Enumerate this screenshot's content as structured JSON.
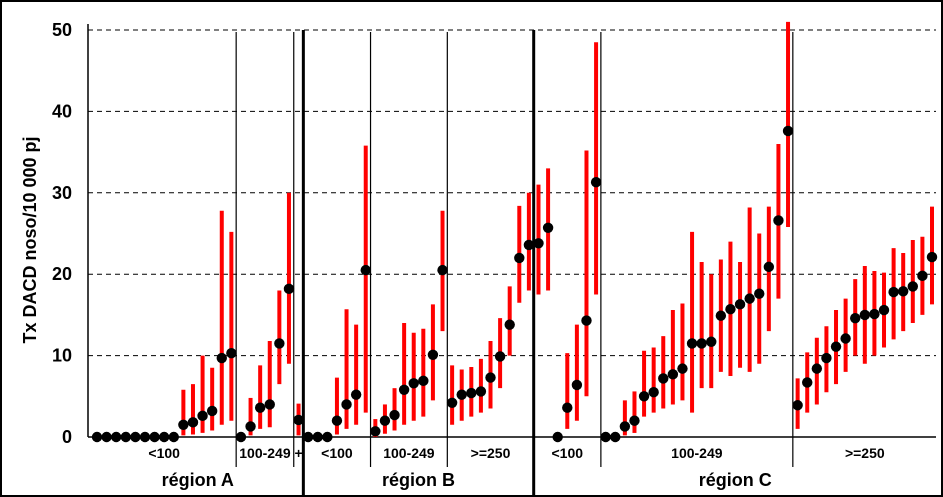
{
  "chart_data": {
    "type": "scatter",
    "title": "",
    "ylabel": "Tx DACD noso/10 000 pj",
    "ylim": [
      0,
      50
    ],
    "yticks": [
      "0",
      "10",
      "20",
      "30",
      "40",
      "50"
    ],
    "grid": "horizontal dashed",
    "colors": {
      "point": "#000000",
      "interval": "#ff0000"
    },
    "regions": [
      {
        "name": "région A",
        "groups": [
          {
            "label": "<100",
            "points": [
              {
                "v": 0,
                "lo": 0,
                "hi": 0
              },
              {
                "v": 0,
                "lo": 0,
                "hi": 0
              },
              {
                "v": 0,
                "lo": 0,
                "hi": 0
              },
              {
                "v": 0,
                "lo": 0,
                "hi": 0
              },
              {
                "v": 0,
                "lo": 0,
                "hi": 0
              },
              {
                "v": 0,
                "lo": 0,
                "hi": 0
              },
              {
                "v": 0,
                "lo": 0,
                "hi": 0
              },
              {
                "v": 0,
                "lo": 0,
                "hi": 0
              },
              {
                "v": 0,
                "lo": 0,
                "hi": 0
              },
              {
                "v": 1.5,
                "lo": 0.2,
                "hi": 5.8
              },
              {
                "v": 1.8,
                "lo": 0.3,
                "hi": 6.5
              },
              {
                "v": 2.6,
                "lo": 0.5,
                "hi": 10
              },
              {
                "v": 3.2,
                "lo": 0.8,
                "hi": 8.5
              },
              {
                "v": 9.7,
                "lo": 1.5,
                "hi": 27.8
              },
              {
                "v": 10.3,
                "lo": 2,
                "hi": 25.2
              }
            ]
          },
          {
            "label": "100-249",
            "points": [
              {
                "v": 0,
                "lo": 0,
                "hi": 0
              },
              {
                "v": 1.3,
                "lo": 0.2,
                "hi": 4.8
              },
              {
                "v": 3.6,
                "lo": 1,
                "hi": 8.8
              },
              {
                "v": 4,
                "lo": 1.2,
                "hi": 11.8
              },
              {
                "v": 11.5,
                "lo": 6.5,
                "hi": 18
              },
              {
                "v": 18.2,
                "lo": 9,
                "hi": 30
              }
            ]
          },
          {
            "label": "+",
            "points": [
              {
                "v": 2.1,
                "lo": 0.2,
                "hi": 4.1
              }
            ]
          }
        ]
      },
      {
        "name": "région B",
        "groups": [
          {
            "label": "<100",
            "points": [
              {
                "v": 0,
                "lo": 0,
                "hi": 0
              },
              {
                "v": 0,
                "lo": 0,
                "hi": 0
              },
              {
                "v": 0,
                "lo": 0,
                "hi": 0
              },
              {
                "v": 2,
                "lo": 0.3,
                "hi": 7.3
              },
              {
                "v": 4,
                "lo": 1,
                "hi": 15.7
              },
              {
                "v": 5.2,
                "lo": 1.5,
                "hi": 13.8
              },
              {
                "v": 20.5,
                "lo": 3,
                "hi": 35.8
              }
            ]
          },
          {
            "label": "100-249",
            "points": [
              {
                "v": 0.7,
                "lo": 0,
                "hi": 2.2
              },
              {
                "v": 2,
                "lo": 0.4,
                "hi": 4
              },
              {
                "v": 2.7,
                "lo": 0.8,
                "hi": 6
              },
              {
                "v": 5.8,
                "lo": 1.5,
                "hi": 14
              },
              {
                "v": 6.6,
                "lo": 2,
                "hi": 12.8
              },
              {
                "v": 6.9,
                "lo": 2.5,
                "hi": 13.3
              },
              {
                "v": 10.1,
                "lo": 4.5,
                "hi": 16.3
              },
              {
                "v": 20.5,
                "lo": 13,
                "hi": 27.8
              }
            ]
          },
          {
            "label": ">=250",
            "points": [
              {
                "v": 4.2,
                "lo": 1.5,
                "hi": 8.8
              },
              {
                "v": 5.2,
                "lo": 2,
                "hi": 8.3
              },
              {
                "v": 5.4,
                "lo": 2.5,
                "hi": 8.6
              },
              {
                "v": 5.6,
                "lo": 3,
                "hi": 9.6
              },
              {
                "v": 7.3,
                "lo": 3.5,
                "hi": 11.8
              },
              {
                "v": 9.9,
                "lo": 6,
                "hi": 14.6
              },
              {
                "v": 13.8,
                "lo": 10,
                "hi": 18.5
              },
              {
                "v": 22,
                "lo": 16.5,
                "hi": 28.4
              },
              {
                "v": 23.6,
                "lo": 18,
                "hi": 30
              }
            ]
          }
        ]
      },
      {
        "name": "région C",
        "groups": [
          {
            "label": "<100",
            "points": [
              {
                "v": 23.8,
                "lo": 17.5,
                "hi": 31
              },
              {
                "v": 25.7,
                "lo": 18,
                "hi": 33
              },
              {
                "v": 0,
                "lo": 0,
                "hi": 0
              },
              {
                "v": 3.6,
                "lo": 1,
                "hi": 10.3
              },
              {
                "v": 6.4,
                "lo": 2,
                "hi": 13.8
              },
              {
                "v": 14.3,
                "lo": 5,
                "hi": 35.2
              },
              {
                "v": 31.3,
                "lo": 17.5,
                "hi": 48.5
              }
            ]
          },
          {
            "label": "100-249",
            "points": [
              {
                "v": 0,
                "lo": 0,
                "hi": 0
              },
              {
                "v": 0,
                "lo": 0,
                "hi": 0
              },
              {
                "v": 1.3,
                "lo": 0.2,
                "hi": 4.5
              },
              {
                "v": 2,
                "lo": 0.5,
                "hi": 5.6
              },
              {
                "v": 5,
                "lo": 2.5,
                "hi": 10.6
              },
              {
                "v": 5.5,
                "lo": 3,
                "hi": 11
              },
              {
                "v": 7.2,
                "lo": 3.5,
                "hi": 12.4
              },
              {
                "v": 7.7,
                "lo": 4,
                "hi": 15.6
              },
              {
                "v": 8.4,
                "lo": 4.5,
                "hi": 16.4
              },
              {
                "v": 11.5,
                "lo": 3,
                "hi": 25.2
              },
              {
                "v": 11.5,
                "lo": 6,
                "hi": 21.5
              },
              {
                "v": 11.7,
                "lo": 6,
                "hi": 20
              },
              {
                "v": 14.9,
                "lo": 8,
                "hi": 21.8
              },
              {
                "v": 15.7,
                "lo": 7.5,
                "hi": 24
              },
              {
                "v": 16.3,
                "lo": 8.5,
                "hi": 21.5
              },
              {
                "v": 17,
                "lo": 8,
                "hi": 28.2
              },
              {
                "v": 17.6,
                "lo": 9,
                "hi": 25
              },
              {
                "v": 20.9,
                "lo": 13,
                "hi": 28.3
              },
              {
                "v": 26.6,
                "lo": 17,
                "hi": 36
              },
              {
                "v": 37.6,
                "lo": 25.8,
                "hi": 51
              }
            ]
          },
          {
            "label": ">=250",
            "points": [
              {
                "v": 3.9,
                "lo": 1,
                "hi": 7.2
              },
              {
                "v": 6.7,
                "lo": 3,
                "hi": 10.4
              },
              {
                "v": 8.4,
                "lo": 4,
                "hi": 12.2
              },
              {
                "v": 9.7,
                "lo": 5.5,
                "hi": 13.6
              },
              {
                "v": 11.1,
                "lo": 6.5,
                "hi": 15.6
              },
              {
                "v": 12.1,
                "lo": 8,
                "hi": 17
              },
              {
                "v": 14.6,
                "lo": 10,
                "hi": 19.4
              },
              {
                "v": 15,
                "lo": 9,
                "hi": 21
              },
              {
                "v": 15.1,
                "lo": 10,
                "hi": 20.4
              },
              {
                "v": 15.6,
                "lo": 11,
                "hi": 20.2
              },
              {
                "v": 17.8,
                "lo": 12,
                "hi": 23.2
              },
              {
                "v": 17.9,
                "lo": 13,
                "hi": 22.6
              },
              {
                "v": 18.5,
                "lo": 14,
                "hi": 24.2
              },
              {
                "v": 19.8,
                "lo": 15,
                "hi": 24.6
              },
              {
                "v": 22.1,
                "lo": 16.3,
                "hi": 28.3
              }
            ]
          }
        ]
      }
    ]
  }
}
